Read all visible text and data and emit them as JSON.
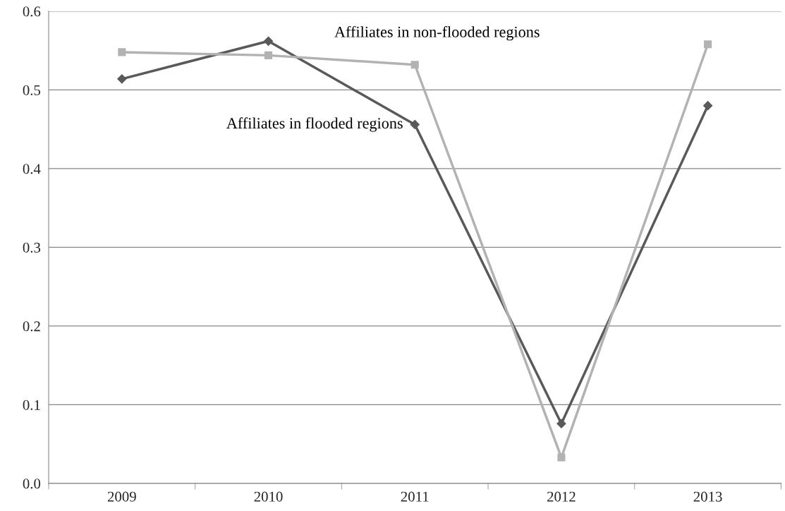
{
  "chart_data": {
    "type": "line",
    "categories": [
      "2009",
      "2010",
      "2011",
      "2012",
      "2013"
    ],
    "series": [
      {
        "name": "Affiliates in flooded regions",
        "color": "#595959",
        "marker": "diamond",
        "values": [
          0.514,
          0.562,
          0.456,
          0.076,
          0.48
        ]
      },
      {
        "name": "Affiliates in non-flooded regions",
        "color": "#b2b2b2",
        "marker": "square",
        "values": [
          0.548,
          0.544,
          0.532,
          0.033,
          0.558
        ]
      }
    ],
    "ylim": [
      0,
      0.6
    ],
    "yticks": [
      {
        "value": 0,
        "label": "0.0"
      },
      0.1,
      0.2,
      0.3,
      0.4,
      0.5,
      0.6
    ],
    "grid": "y",
    "legend": false,
    "line_style": "solid"
  }
}
